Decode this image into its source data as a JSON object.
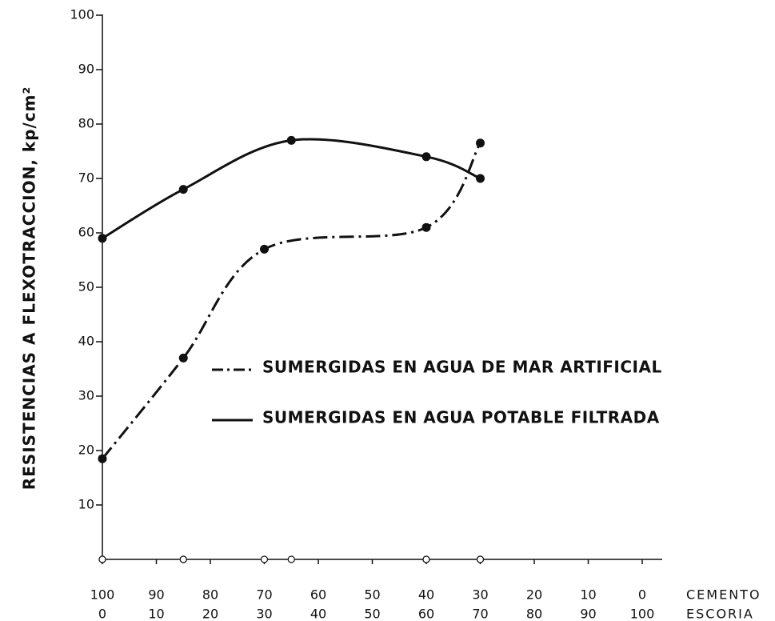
{
  "chart_data": {
    "type": "line",
    "ylabel": "RESISTENCIAS A FLEXOTRACCION, kp/cm²",
    "xlabel": "ESCORIA",
    "x2label": "CEMENTO",
    "xlim": [
      0,
      100
    ],
    "xticks": [
      0,
      10,
      20,
      30,
      40,
      50,
      60,
      70,
      80,
      90,
      100
    ],
    "x2lim": [
      100,
      0
    ],
    "x2ticks": [
      100,
      90,
      80,
      70,
      60,
      50,
      40,
      30,
      20,
      10,
      0
    ],
    "ylim": [
      0,
      100
    ],
    "yticks": [
      10,
      20,
      30,
      40,
      50,
      60,
      70,
      80,
      90,
      100
    ],
    "series": [
      {
        "name": "SUMERGIDAS EN AGUA DE MAR ARTIFICIAL",
        "color": "#111111",
        "style": "dashdot",
        "x": [
          0,
          15,
          30,
          60,
          70
        ],
        "values": [
          18.5,
          37,
          57,
          61,
          76.5
        ]
      },
      {
        "name": "SUMERGIDAS EN AGUA POTABLE FILTRADA",
        "color": "#111111",
        "style": "solid",
        "x": [
          0,
          15,
          35,
          60,
          70
        ],
        "values": [
          59,
          68,
          77,
          74,
          70
        ]
      }
    ]
  }
}
